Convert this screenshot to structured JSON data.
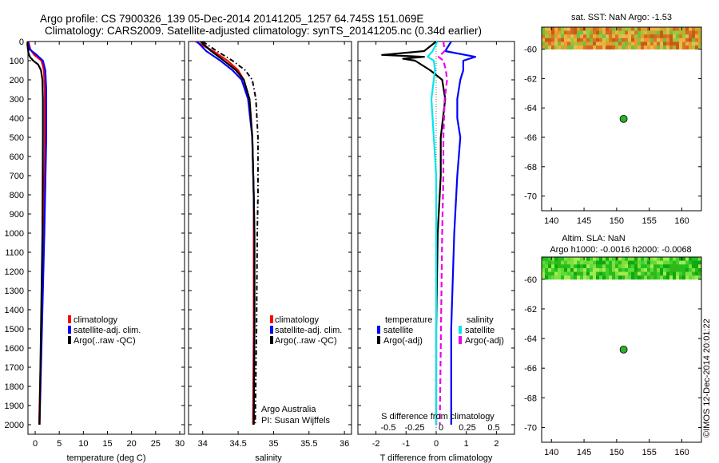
{
  "header": {
    "line1": "Argo profile: CS 7900326_139 05-Dec-2014 20141205_1257 64.745S 151.069E",
    "line2": "Climatology: CARS2009. Satellite-adjusted climatology: synTS_20141205.nc (0.34d earlier)"
  },
  "side_credit": "©IMOS 12-Dec-2014 20:01:22",
  "colors": {
    "climatology": "#ff0000",
    "satellite": "#0000ff",
    "argo": "#000000",
    "sal_satellite": "#00e5ee",
    "sal_argo": "#ee00ee",
    "map_marker": "#2db02d"
  },
  "chart_data": [
    {
      "type": "line",
      "xlabel": "temperature (deg C)",
      "xlim": [
        -1.5,
        31
      ],
      "xticks": [
        0,
        5,
        10,
        15,
        20,
        25,
        30
      ],
      "ylim": [
        0,
        2050
      ],
      "yinvert": true,
      "yticks": [
        0,
        100,
        200,
        300,
        400,
        500,
        600,
        700,
        800,
        900,
        1000,
        1100,
        1200,
        1300,
        1400,
        1500,
        1600,
        1700,
        1800,
        1900,
        2000
      ],
      "legend": [
        "climatology",
        "satellite-adj. clim.",
        "Argo(..raw -QC)"
      ],
      "legend_position": "lower-right",
      "series": [
        {
          "name": "climatology",
          "color": "#ff0000",
          "style": "solid",
          "y": [
            0,
            40,
            70,
            100,
            150,
            250,
            500,
            1000,
            1500,
            2000
          ],
          "values": [
            -1.4,
            -1.0,
            -0.2,
            1.3,
            1.8,
            2.0,
            2.0,
            1.8,
            1.3,
            0.8
          ]
        },
        {
          "name": "satellite-adj. clim.",
          "color": "#0000ff",
          "style": "solid",
          "y": [
            0,
            40,
            70,
            100,
            150,
            250,
            500,
            1000,
            1500,
            2000
          ],
          "values": [
            -1.5,
            -1.2,
            0.3,
            1.6,
            2.1,
            2.3,
            2.3,
            1.9,
            1.4,
            0.9
          ]
        },
        {
          "name": "Argo(..raw -QC)",
          "color": "#000000",
          "style": "solid",
          "y": [
            0,
            20,
            40,
            60,
            80,
            100,
            120,
            150,
            200,
            300,
            500,
            1000,
            1500,
            2000
          ],
          "values": [
            -1.6,
            -1.6,
            -1.5,
            -1.4,
            -1.1,
            -0.4,
            0.6,
            1.2,
            1.5,
            1.6,
            1.6,
            1.5,
            1.2,
            0.9
          ]
        }
      ]
    },
    {
      "type": "line",
      "xlabel": "salinity",
      "xlim": [
        33.8,
        36.1
      ],
      "xticks": [
        34,
        34.5,
        35,
        35.5,
        36
      ],
      "ylim": [
        0,
        2050
      ],
      "yinvert": true,
      "legend": [
        "climatology",
        "satellite-adj. clim.",
        "Argo(..raw -QC)"
      ],
      "legend_position": "lower-right",
      "annotations": [
        "Argo Australia",
        "PI: Susan Wijffels"
      ],
      "series": [
        {
          "name": "climatology",
          "color": "#ff0000",
          "style": "solid",
          "y": [
            0,
            50,
            100,
            150,
            200,
            300,
            500,
            800,
            1000,
            1500,
            2000
          ],
          "values": [
            33.9,
            34.15,
            34.35,
            34.5,
            34.58,
            34.66,
            34.7,
            34.72,
            34.72,
            34.72,
            34.71
          ]
        },
        {
          "name": "satellite-adj. clim.",
          "color": "#0000ff",
          "style": "solid",
          "y": [
            0,
            50,
            100,
            150,
            200,
            300,
            500,
            800,
            1000,
            1500,
            2000
          ],
          "values": [
            33.92,
            34.05,
            34.25,
            34.42,
            34.55,
            34.64,
            34.7,
            34.72,
            34.73,
            34.73,
            34.72
          ]
        },
        {
          "name": "Argo(..raw -QC)",
          "color": "#000000",
          "style": "solid",
          "y": [
            0,
            50,
            100,
            150,
            200,
            300,
            500,
            800,
            1000,
            1500,
            2000
          ],
          "values": [
            33.97,
            34.12,
            34.3,
            34.47,
            34.58,
            34.66,
            34.7,
            34.72,
            34.73,
            34.73,
            34.72
          ]
        },
        {
          "name": "Argo(..raw -QC) dash-dot",
          "color": "#000000",
          "style": "dashdot",
          "y": [
            0,
            50,
            100,
            150,
            200,
            300,
            500,
            800,
            1000,
            1500,
            2000
          ],
          "values": [
            34.0,
            34.2,
            34.42,
            34.6,
            34.7,
            34.75,
            34.78,
            34.78,
            34.77,
            34.76,
            34.74
          ]
        }
      ]
    },
    {
      "type": "line",
      "xlabel": "T difference from climatology",
      "xlabel_top": "S difference from climatology",
      "xlim": [
        -2.6,
        2.6
      ],
      "xticks": [
        -2,
        -1,
        0,
        1,
        2
      ],
      "xticks_top": [
        "-0.5",
        "-0.25",
        "0",
        "0.25",
        "0.5"
      ],
      "ylim": [
        0,
        2050
      ],
      "yinvert": true,
      "legend_groups": [
        {
          "title": "temperature",
          "items": [
            "satellite",
            "Argo(-adj)"
          ]
        },
        {
          "title": "salinity",
          "items": [
            "satellite",
            "Argo(-adj)"
          ]
        }
      ],
      "series": [
        {
          "name": "temperature satellite",
          "color": "#0000ff",
          "style": "solid",
          "y": [
            0,
            50,
            80,
            100,
            150,
            200,
            300,
            400,
            500,
            700,
            1000,
            1500,
            2000
          ],
          "values": [
            0.5,
            0.3,
            1.3,
            0.9,
            0.9,
            0.8,
            0.7,
            0.7,
            0.8,
            0.7,
            0.6,
            0.5,
            0.5
          ]
        },
        {
          "name": "temperature Argo(-adj)",
          "color": "#000000",
          "style": "solid",
          "y": [
            0,
            50,
            70,
            80,
            90,
            100,
            150,
            200,
            300,
            500,
            700,
            1000,
            1500,
            2000
          ],
          "values": [
            0.0,
            -0.4,
            -1.8,
            -0.4,
            -1.1,
            -0.7,
            -0.2,
            0.2,
            0.3,
            0.15,
            0.15,
            0.05,
            0.0,
            0.0
          ]
        },
        {
          "name": "salinity satellite",
          "color": "#00e5ee",
          "style": "solid",
          "y": [
            0,
            50,
            80,
            100,
            150,
            200,
            300,
            400,
            500,
            700,
            1000,
            1500,
            2000
          ],
          "values": [
            0.01,
            -0.03,
            -0.07,
            -0.02,
            -0.01,
            -0.02,
            -0.04,
            -0.03,
            -0.02,
            0.0,
            0.0,
            0.0,
            0.0
          ]
        },
        {
          "name": "salinity Argo(-adj)",
          "color": "#ee00ee",
          "style": "dashed",
          "y": [
            0,
            50,
            80,
            100,
            150,
            200,
            300,
            500,
            700,
            1000,
            1500,
            2000
          ],
          "values": [
            0.06,
            0.07,
            0.02,
            0.06,
            0.08,
            0.09,
            0.07,
            0.06,
            0.06,
            0.05,
            0.04,
            0.03
          ]
        }
      ]
    },
    {
      "type": "heatmap",
      "title": "sat. SST: NaN Argo: -1.53",
      "xlim": [
        138.5,
        163
      ],
      "ylim": [
        -71,
        -58.5
      ],
      "xticks": [
        140,
        145,
        150,
        155,
        160
      ],
      "yticks": [
        -60,
        -62,
        -64,
        -66,
        -68,
        -70
      ],
      "colored_band_lat": [
        -58.5,
        -60
      ],
      "marker": {
        "lon": 151.069,
        "lat": -64.745
      }
    },
    {
      "type": "heatmap",
      "title_lines": [
        "Altim. SLA: NaN",
        "Argo h1000: -0.0016 h2000: -0.0068"
      ],
      "xlim": [
        138.5,
        163
      ],
      "ylim": [
        -71,
        -58.5
      ],
      "xticks": [
        140,
        145,
        150,
        155,
        160
      ],
      "yticks": [
        -60,
        -62,
        -64,
        -66,
        -68,
        -70
      ],
      "colored_band_lat": [
        -58.5,
        -60
      ],
      "marker": {
        "lon": 151.069,
        "lat": -64.745
      }
    }
  ]
}
